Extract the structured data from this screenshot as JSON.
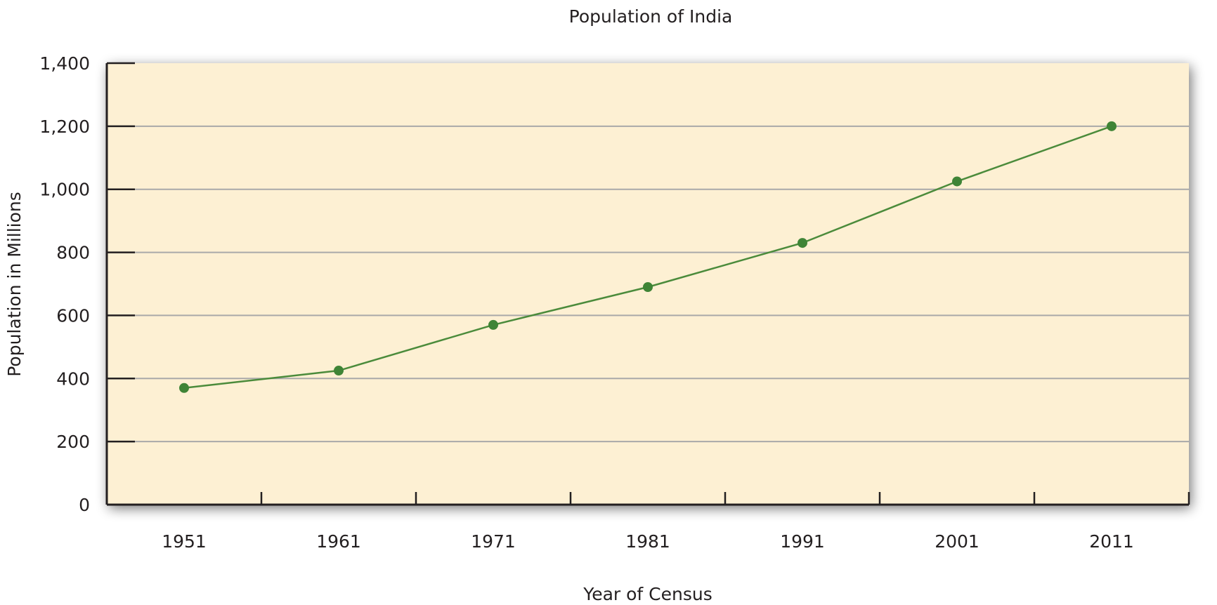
{
  "chart_data": {
    "type": "line",
    "title": "Population of India",
    "xlabel": "Year of Census",
    "ylabel": "Population in Millions",
    "categories": [
      "1951",
      "1961",
      "1971",
      "1981",
      "1991",
      "2001",
      "2011"
    ],
    "series": [
      {
        "name": "Population",
        "values": [
          370,
          425,
          570,
          690,
          830,
          1025,
          1200
        ]
      }
    ],
    "ylim": [
      0,
      1400
    ],
    "yticks": [
      0,
      200,
      400,
      600,
      800,
      1000,
      1200,
      1400
    ],
    "ytick_labels": [
      "0",
      "200",
      "400",
      "600",
      "800",
      "1,000",
      "1,200",
      "1,400"
    ],
    "grid": true,
    "colors": {
      "plot_bg": "#fdf0d3",
      "line": "#4b8b3b",
      "marker": "#3f8436",
      "grid": "#a9a9a9",
      "axis": "#231f20"
    }
  }
}
